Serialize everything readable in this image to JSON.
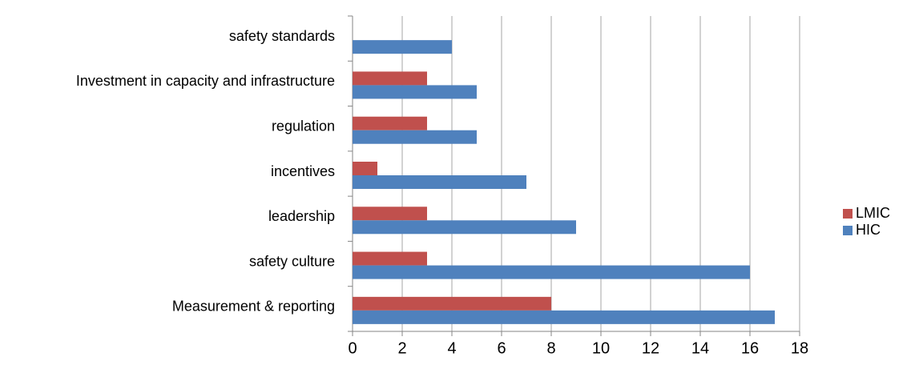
{
  "chart_data": {
    "type": "bar",
    "orientation": "horizontal",
    "categories": [
      "safety standards",
      "Investment in capacity and infrastructure",
      "regulation",
      "incentives",
      "leadership",
      "safety culture",
      "Measurement & reporting"
    ],
    "series": [
      {
        "name": "LMIC",
        "color": "#c0504d",
        "values": [
          0,
          3,
          3,
          1,
          3,
          3,
          8
        ]
      },
      {
        "name": "HIC",
        "color": "#4f81bd",
        "values": [
          4,
          5,
          5,
          7,
          9,
          16,
          17
        ]
      }
    ],
    "xlim": [
      0,
      18
    ],
    "xticks": [
      0,
      2,
      4,
      6,
      8,
      10,
      12,
      14,
      16,
      18
    ],
    "grid": true,
    "legend": "right"
  }
}
